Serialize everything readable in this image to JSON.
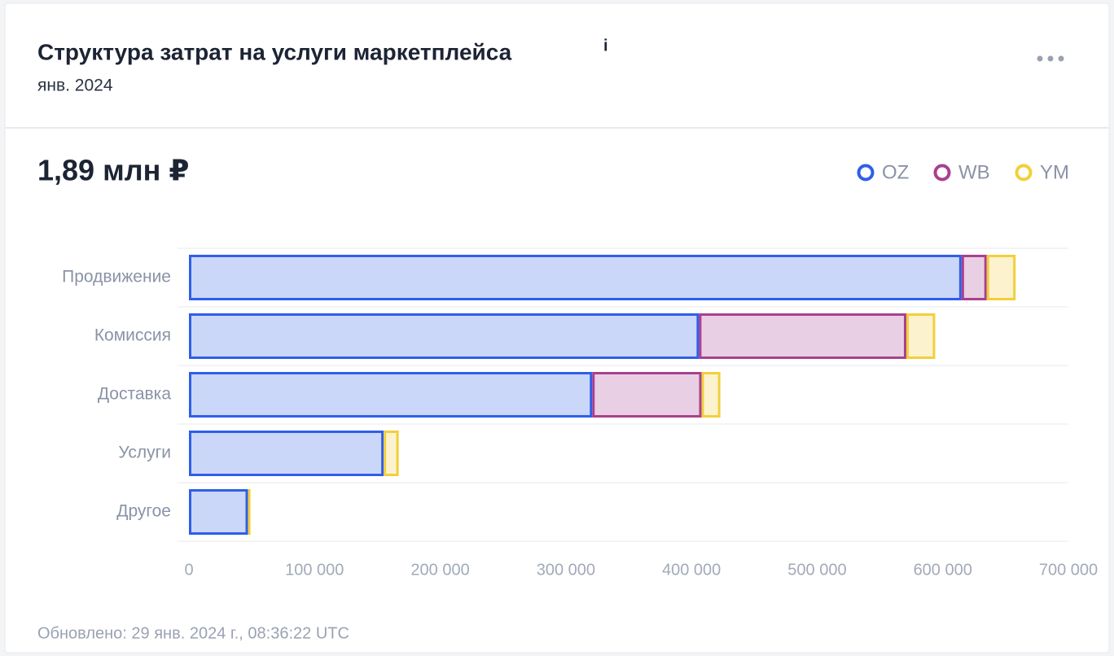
{
  "header": {
    "title": "Структура затрат на услуги маркетплейса",
    "subtitle": "янв. 2024"
  },
  "total": "1,89 млн ₽",
  "chart_data": {
    "type": "stacked-bar-horizontal",
    "categories": [
      "Продвижение",
      "Комиссия",
      "Доставка",
      "Услуги",
      "Другое"
    ],
    "series": [
      {
        "name": "OZ",
        "color": "#2f5ee8",
        "values": [
          615000,
          406000,
          321000,
          155000,
          47000
        ]
      },
      {
        "name": "WB",
        "color": "#a8418f",
        "values": [
          20000,
          165000,
          87000,
          0,
          0
        ]
      },
      {
        "name": "YM",
        "color": "#f2cf3c",
        "values": [
          23000,
          23000,
          15000,
          12000,
          2000
        ]
      }
    ],
    "xlim": [
      0,
      700000
    ],
    "xticks": [
      0,
      {
        "value": 100000,
        "label": "100 000"
      },
      {
        "value": 200000,
        "label": "200 000"
      },
      {
        "value": 300000,
        "label": "300 000"
      },
      {
        "value": 400000,
        "label": "400 000"
      },
      {
        "value": 500000,
        "label": "500 000"
      },
      {
        "value": 600000,
        "label": "600 000"
      },
      {
        "value": 700000,
        "label": "700 000"
      }
    ],
    "legend": "top-right"
  },
  "footer": "Обновлено: 29 янв. 2024 г., 08:36:22 UTC"
}
